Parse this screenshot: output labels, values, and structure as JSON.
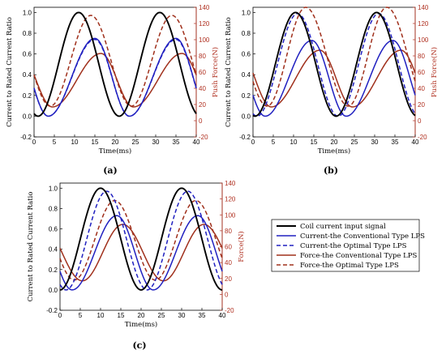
{
  "colors": {
    "black": "#000000",
    "blue": "#2020c0",
    "red": "#a0301c",
    "axis_right": "#b03020"
  },
  "chart_data": [
    {
      "type": "line",
      "panel_label": "(a)",
      "xlabel": "Time(ms)",
      "ylabel": "Current to Rated Current Ratio",
      "y2label": "Push Force(N)",
      "xlim": [
        0,
        40
      ],
      "ylim": [
        -0.2,
        1.05
      ],
      "y2lim": [
        -20,
        140
      ],
      "xticks": [
        "0",
        "5",
        "10",
        "15",
        "20",
        "25",
        "30",
        "35",
        "40"
      ],
      "yticks": [
        "-0.2",
        "0.0",
        "0.2",
        "0.4",
        "0.6",
        "0.8",
        "1.0"
      ],
      "y2ticks": [
        "-20",
        "0",
        "20",
        "40",
        "60",
        "80",
        "100",
        "120",
        "140"
      ],
      "series": [
        {
          "name": "Coil current input signal",
          "axis": "left",
          "style": "solid",
          "color": "#000000",
          "peaks": [
            11,
            31
          ],
          "troughs": [
            1,
            21
          ],
          "min": 0.0,
          "max": 1.0,
          "period": 20
        },
        {
          "name": "Current-the Conventional Type LPS",
          "axis": "left",
          "style": "solid",
          "color": "#2020c0",
          "peaks": [
            15,
            35
          ],
          "troughs": [
            3.5,
            23.5
          ],
          "min": 0.0,
          "max": 0.75,
          "period": 20
        },
        {
          "name": "Current-the Optimal Type LPS",
          "axis": "left",
          "style": "dash",
          "color": "#2020c0",
          "peaks": [
            15,
            35
          ],
          "troughs": [
            3.5,
            23.5
          ],
          "min": 0.0,
          "max": 0.74,
          "period": 20
        },
        {
          "name": "Force-the Conventional Type LPS",
          "axis": "right",
          "style": "solid",
          "color": "#a0301c",
          "peaks": [
            16.5,
            36.5
          ],
          "troughs": [
            4.5,
            24.5
          ],
          "min": 17,
          "max": 83,
          "period": 20
        },
        {
          "name": "Force-the Optimal Type LPS",
          "axis": "right",
          "style": "dash",
          "color": "#a0301c",
          "peaks": [
            14,
            34
          ],
          "troughs": [
            4,
            24
          ],
          "min": 18,
          "max": 130,
          "period": 20
        }
      ]
    },
    {
      "type": "line",
      "panel_label": "(b)",
      "xlabel": "Time(ms)",
      "ylabel": "Current to Rated Current Ratio",
      "y2label": "Push Force(N)",
      "xlim": [
        0,
        40
      ],
      "ylim": [
        -0.2,
        1.05
      ],
      "y2lim": [
        -20,
        140
      ],
      "xticks": [
        "0",
        "5",
        "10",
        "15",
        "20",
        "25",
        "30",
        "35",
        "40"
      ],
      "yticks": [
        "-0.2",
        "0.0",
        "0.2",
        "0.4",
        "0.6",
        "0.8",
        "1.0"
      ],
      "y2ticks": [
        "-20",
        "0",
        "20",
        "40",
        "60",
        "80",
        "100",
        "120",
        "140"
      ],
      "series": [
        {
          "name": "Coil current input signal",
          "axis": "left",
          "style": "solid",
          "color": "#000000",
          "peaks": [
            10.5,
            30.5
          ],
          "troughs": [
            0.5,
            20.5
          ],
          "min": 0.0,
          "max": 1.0,
          "period": 20
        },
        {
          "name": "Current-the Conventional Type LPS",
          "axis": "left",
          "style": "solid",
          "color": "#2020c0",
          "peaks": [
            14.5,
            34.5
          ],
          "troughs": [
            3,
            23
          ],
          "min": 0.0,
          "max": 0.73,
          "period": 20
        },
        {
          "name": "Current-the Optimal Type LPS",
          "axis": "left",
          "style": "dash",
          "color": "#2020c0",
          "peaks": [
            11,
            31
          ],
          "troughs": [
            1,
            21
          ],
          "min": 0.0,
          "max": 0.99,
          "period": 20
        },
        {
          "name": "Force-the Conventional Type LPS",
          "axis": "right",
          "style": "solid",
          "color": "#a0301c",
          "peaks": [
            16.5,
            36.5
          ],
          "troughs": [
            4.5,
            24.5
          ],
          "min": 17,
          "max": 87,
          "period": 20
        },
        {
          "name": "Force-the Optimal Type LPS",
          "axis": "right",
          "style": "dash",
          "color": "#a0301c",
          "peaks": [
            13,
            33
          ],
          "troughs": [
            3.5,
            23.5
          ],
          "min": 18,
          "max": 140,
          "period": 20
        }
      ]
    },
    {
      "type": "line",
      "panel_label": "(c)",
      "xlabel": "Time(ms)",
      "ylabel": "Current to Rated Current Ratio",
      "y2label": "Force(N)",
      "xlim": [
        0,
        40
      ],
      "ylim": [
        -0.2,
        1.05
      ],
      "y2lim": [
        -20,
        140
      ],
      "xticks": [
        "0",
        "5",
        "10",
        "15",
        "20",
        "25",
        "30",
        "35",
        "40"
      ],
      "yticks": [
        "-0.2",
        "0.0",
        "0.2",
        "0.4",
        "0.6",
        "0.8",
        "1.0"
      ],
      "y2ticks": [
        "-20",
        "0",
        "20",
        "40",
        "60",
        "80",
        "100",
        "120",
        "140"
      ],
      "series": [
        {
          "name": "Coil current input signal",
          "axis": "left",
          "style": "solid",
          "color": "#000000",
          "peaks": [
            10,
            30
          ],
          "troughs": [
            0,
            20
          ],
          "min": 0.0,
          "max": 1.0,
          "period": 20
        },
        {
          "name": "Current-the Conventional Type LPS",
          "axis": "left",
          "style": "solid",
          "color": "#2020c0",
          "peaks": [
            14,
            34
          ],
          "troughs": [
            3,
            23
          ],
          "min": 0.0,
          "max": 0.73,
          "period": 20
        },
        {
          "name": "Current-the Optimal Type LPS",
          "axis": "left",
          "style": "dash",
          "color": "#2020c0",
          "peaks": [
            11.5,
            31.5
          ],
          "troughs": [
            1.5,
            21.5
          ],
          "min": 0.0,
          "max": 0.97,
          "period": 20
        },
        {
          "name": "Force-the Conventional Type LPS",
          "axis": "right",
          "style": "solid",
          "color": "#a0301c",
          "peaks": [
            15.5,
            35.5
          ],
          "troughs": [
            5.5,
            25.5
          ],
          "min": 17,
          "max": 88,
          "period": 20
        },
        {
          "name": "Force-the Optimal Type LPS",
          "axis": "right",
          "style": "dash",
          "color": "#a0301c",
          "peaks": [
            13.5,
            33.5
          ],
          "troughs": [
            3.5,
            23.5
          ],
          "min": 18,
          "max": 118,
          "period": 20
        }
      ]
    }
  ],
  "legend": {
    "placement": "right-of-panel-c",
    "items": [
      {
        "label": "Coil current input signal",
        "color": "#000000",
        "style": "solid"
      },
      {
        "label": "Current-the Conventional Type LPS",
        "color": "#2020c0",
        "style": "solid"
      },
      {
        "label": "Current-the Optimal Type LPS",
        "color": "#2020c0",
        "style": "dash"
      },
      {
        "label": "Force-the Conventional Type LPS",
        "color": "#a0301c",
        "style": "solid"
      },
      {
        "label": "Force-the Optimal Type LPS",
        "color": "#a0301c",
        "style": "dash"
      }
    ]
  }
}
